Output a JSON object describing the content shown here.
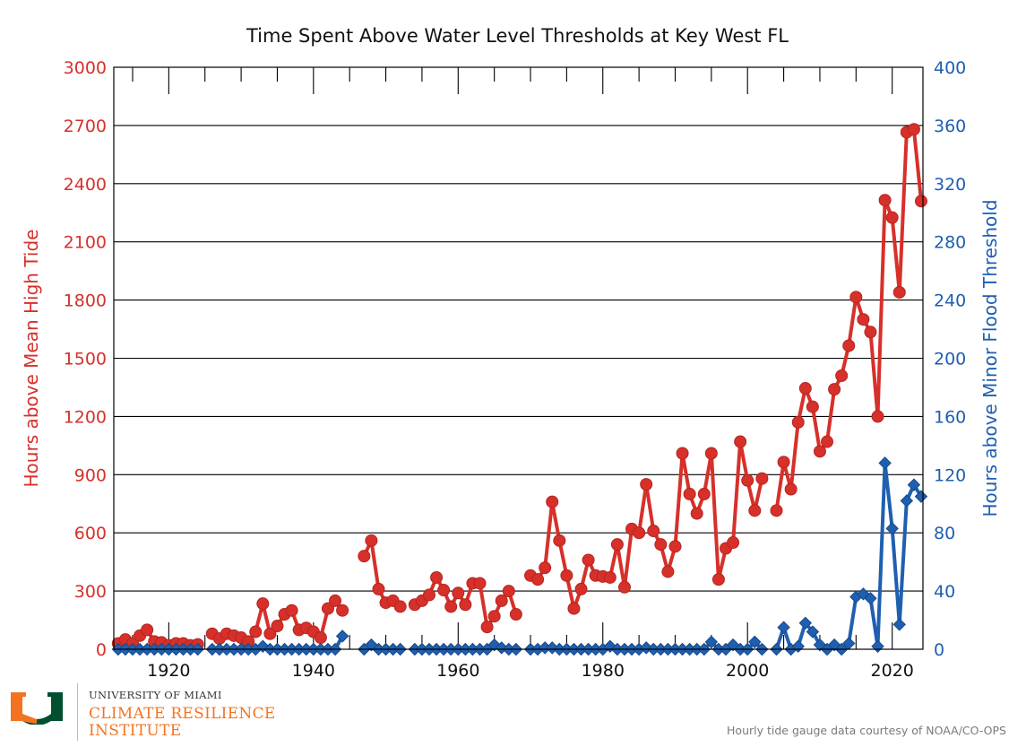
{
  "chart_data": {
    "type": "line",
    "title": "Time Spent Above Water Level Thresholds at Key West FL",
    "x_ticks": [
      1920,
      1940,
      1960,
      1980,
      2000,
      2020
    ],
    "xlim": [
      1913,
      2024
    ],
    "left_axis": {
      "label": "Hours above Mean High Tide",
      "color": "#d7302a",
      "ylim": [
        0,
        3000
      ],
      "ticks": [
        0,
        300,
        600,
        900,
        1200,
        1500,
        1800,
        2100,
        2400,
        2700,
        3000
      ]
    },
    "right_axis": {
      "label": "Hours above Minor Flood Threshold",
      "color": "#1f5fb0",
      "ylim": [
        0,
        400
      ],
      "ticks": [
        0,
        40,
        80,
        120,
        160,
        200,
        240,
        280,
        320,
        360,
        400
      ]
    },
    "grid": "horizontal",
    "series": [
      {
        "name": "Hours above Mean High Tide",
        "axis": "left",
        "color": "#d7302a",
        "marker": "circle",
        "segments": [
          [
            [
              1913,
              30
            ],
            [
              1914,
              50
            ],
            [
              1915,
              30
            ],
            [
              1916,
              70
            ],
            [
              1917,
              100
            ],
            [
              1918,
              40
            ],
            [
              1919,
              35
            ],
            [
              1920,
              20
            ],
            [
              1921,
              30
            ],
            [
              1922,
              30
            ],
            [
              1923,
              20
            ],
            [
              1924,
              25
            ]
          ],
          [
            [
              1926,
              80
            ],
            [
              1927,
              55
            ],
            [
              1928,
              80
            ],
            [
              1929,
              70
            ],
            [
              1930,
              60
            ],
            [
              1931,
              40
            ],
            [
              1932,
              90
            ],
            [
              1933,
              235
            ],
            [
              1934,
              80
            ],
            [
              1935,
              120
            ],
            [
              1936,
              180
            ],
            [
              1937,
              200
            ],
            [
              1938,
              100
            ],
            [
              1939,
              110
            ],
            [
              1940,
              90
            ],
            [
              1941,
              60
            ],
            [
              1942,
              210
            ],
            [
              1943,
              250
            ],
            [
              1944,
              200
            ]
          ],
          [
            [
              1947,
              480
            ],
            [
              1948,
              560
            ],
            [
              1949,
              310
            ],
            [
              1950,
              240
            ],
            [
              1951,
              250
            ],
            [
              1952,
              220
            ]
          ],
          [
            [
              1954,
              230
            ],
            [
              1955,
              250
            ],
            [
              1956,
              280
            ],
            [
              1957,
              370
            ],
            [
              1958,
              305
            ],
            [
              1959,
              220
            ],
            [
              1960,
              290
            ],
            [
              1961,
              230
            ],
            [
              1962,
              340
            ],
            [
              1963,
              340
            ],
            [
              1964,
              115
            ],
            [
              1965,
              170
            ],
            [
              1966,
              250
            ],
            [
              1967,
              300
            ],
            [
              1968,
              180
            ]
          ],
          [
            [
              1970,
              380
            ],
            [
              1971,
              360
            ],
            [
              1972,
              420
            ],
            [
              1973,
              760
            ],
            [
              1974,
              560
            ],
            [
              1975,
              380
            ],
            [
              1976,
              210
            ],
            [
              1977,
              310
            ],
            [
              1978,
              460
            ],
            [
              1979,
              380
            ],
            [
              1980,
              375
            ],
            [
              1981,
              370
            ],
            [
              1982,
              540
            ],
            [
              1983,
              320
            ],
            [
              1984,
              620
            ],
            [
              1985,
              600
            ],
            [
              1986,
              850
            ],
            [
              1987,
              610
            ],
            [
              1988,
              540
            ],
            [
              1989,
              400
            ],
            [
              1990,
              530
            ],
            [
              1991,
              1010
            ],
            [
              1992,
              800
            ],
            [
              1993,
              700
            ],
            [
              1994,
              800
            ],
            [
              1995,
              1010
            ],
            [
              1996,
              360
            ],
            [
              1997,
              520
            ],
            [
              1998,
              550
            ],
            [
              1999,
              1070
            ],
            [
              2000,
              870
            ],
            [
              2001,
              715
            ],
            [
              2002,
              880
            ]
          ],
          [
            [
              2004,
              715
            ],
            [
              2005,
              965
            ],
            [
              2006,
              825
            ],
            [
              2007,
              1170
            ],
            [
              2008,
              1345
            ],
            [
              2009,
              1250
            ],
            [
              2010,
              1020
            ],
            [
              2011,
              1070
            ],
            [
              2012,
              1340
            ],
            [
              2013,
              1410
            ],
            [
              2014,
              1565
            ],
            [
              2015,
              1815
            ],
            [
              2016,
              1700
            ],
            [
              2017,
              1635
            ],
            [
              2018,
              1200
            ],
            [
              2019,
              2315
            ],
            [
              2020,
              2225
            ],
            [
              2021,
              1840
            ],
            [
              2022,
              2665
            ],
            [
              2023,
              2680
            ],
            [
              2024,
              2310
            ]
          ]
        ]
      },
      {
        "name": "Hours above Minor Flood Threshold",
        "axis": "right",
        "color": "#1f5fb0",
        "marker": "diamond",
        "segments": [
          [
            [
              1913,
              0
            ],
            [
              1914,
              0
            ],
            [
              1915,
              0
            ],
            [
              1916,
              0
            ],
            [
              1917,
              0
            ],
            [
              1918,
              0
            ],
            [
              1919,
              0
            ],
            [
              1920,
              0
            ],
            [
              1921,
              0
            ],
            [
              1922,
              0
            ],
            [
              1923,
              0
            ],
            [
              1924,
              0
            ]
          ],
          [
            [
              1926,
              0
            ],
            [
              1927,
              0
            ],
            [
              1928,
              0
            ],
            [
              1929,
              0
            ],
            [
              1930,
              0
            ],
            [
              1931,
              0
            ],
            [
              1932,
              0
            ],
            [
              1933,
              2
            ],
            [
              1934,
              0
            ],
            [
              1935,
              0
            ],
            [
              1936,
              0
            ],
            [
              1937,
              0
            ],
            [
              1938,
              0
            ],
            [
              1939,
              0
            ],
            [
              1940,
              0
            ],
            [
              1941,
              0
            ],
            [
              1942,
              0
            ],
            [
              1943,
              0
            ],
            [
              1944,
              9
            ]
          ],
          [
            [
              1947,
              0
            ],
            [
              1948,
              3
            ],
            [
              1949,
              0
            ],
            [
              1950,
              0
            ],
            [
              1951,
              0
            ],
            [
              1952,
              0
            ]
          ],
          [
            [
              1954,
              0
            ],
            [
              1955,
              0
            ],
            [
              1956,
              0
            ],
            [
              1957,
              0
            ],
            [
              1958,
              0
            ],
            [
              1959,
              0
            ],
            [
              1960,
              0
            ],
            [
              1961,
              0
            ],
            [
              1962,
              0
            ],
            [
              1963,
              0
            ],
            [
              1964,
              0
            ],
            [
              1965,
              3
            ],
            [
              1966,
              1
            ],
            [
              1967,
              0
            ],
            [
              1968,
              0
            ]
          ],
          [
            [
              1970,
              0
            ],
            [
              1971,
              0
            ],
            [
              1972,
              1
            ],
            [
              1973,
              1
            ],
            [
              1974,
              0
            ],
            [
              1975,
              0
            ],
            [
              1976,
              0
            ],
            [
              1977,
              0
            ],
            [
              1978,
              0
            ],
            [
              1979,
              0
            ],
            [
              1980,
              0
            ],
            [
              1981,
              2
            ],
            [
              1982,
              0
            ],
            [
              1983,
              0
            ],
            [
              1984,
              0
            ],
            [
              1985,
              0
            ],
            [
              1986,
              1
            ],
            [
              1987,
              0
            ],
            [
              1988,
              0
            ],
            [
              1989,
              0
            ],
            [
              1990,
              0
            ],
            [
              1991,
              0
            ],
            [
              1992,
              0
            ],
            [
              1993,
              0
            ],
            [
              1994,
              0
            ],
            [
              1995,
              5
            ],
            [
              1996,
              0
            ],
            [
              1997,
              0
            ],
            [
              1998,
              3
            ],
            [
              1999,
              0
            ],
            [
              2000,
              0
            ],
            [
              2001,
              5
            ],
            [
              2002,
              0
            ]
          ],
          [
            [
              2004,
              0
            ],
            [
              2005,
              15
            ],
            [
              2006,
              0
            ],
            [
              2007,
              2
            ],
            [
              2008,
              18
            ],
            [
              2009,
              12
            ],
            [
              2010,
              3
            ],
            [
              2011,
              0
            ],
            [
              2012,
              3
            ],
            [
              2013,
              0
            ],
            [
              2014,
              4
            ],
            [
              2015,
              36
            ],
            [
              2016,
              38
            ],
            [
              2017,
              35
            ],
            [
              2018,
              2
            ],
            [
              2019,
              128
            ],
            [
              2020,
              83
            ],
            [
              2021,
              17
            ],
            [
              2022,
              102
            ],
            [
              2023,
              113
            ],
            [
              2024,
              105
            ]
          ]
        ]
      }
    ]
  },
  "branding": {
    "org": "UNIVERSITY OF MIAMI",
    "line1": "CLIMATE RESILIENCE",
    "line2": "INSTITUTE",
    "logo_colors": [
      "#f47321",
      "#005030"
    ]
  },
  "credit": "Hourly tide gauge data courtesy of NOAA/CO-OPS"
}
